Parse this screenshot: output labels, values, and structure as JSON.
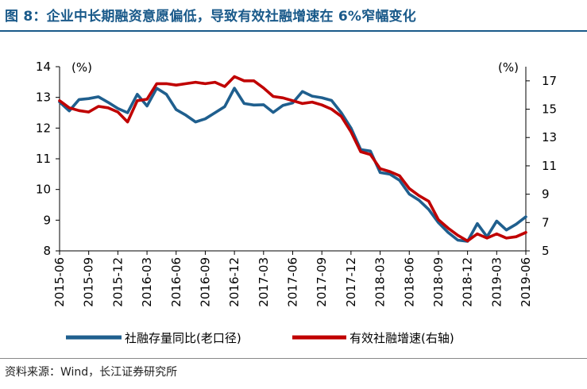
{
  "figure": {
    "title": "图 8：企业中长期融资意愿偏低，导致有效社融增速在 6%窄幅变化",
    "source": "资料来源：Wind，长江证券研究所"
  },
  "chart_data": {
    "type": "line",
    "title": "",
    "left_axis": {
      "unit_label": "(%)",
      "ylim": [
        8,
        14
      ],
      "ticks": [
        "8",
        "9",
        "10",
        "11",
        "12",
        "13",
        "14"
      ]
    },
    "right_axis": {
      "unit_label": "(%)",
      "ylim": [
        5,
        18
      ],
      "ticks": [
        "5",
        "7",
        "9",
        "11",
        "13",
        "15",
        "17"
      ]
    },
    "x_ticks": [
      "2015-06",
      "2015-09",
      "2015-12",
      "2016-03",
      "2016-06",
      "2016-09",
      "2016-12",
      "2017-03",
      "2017-06",
      "2017-09",
      "2017-12",
      "2018-03",
      "2018-06",
      "2018-09",
      "2018-12",
      "2019-03",
      "2019-06"
    ],
    "grid": false,
    "legend_position": "bottom",
    "series": [
      {
        "name": "社融存量同比(老口径)",
        "axis": "left",
        "color": "#1f5f8e",
        "values": [
          12.85,
          12.56,
          12.93,
          12.96,
          13.02,
          12.84,
          12.64,
          12.5,
          13.1,
          12.72,
          13.3,
          13.1,
          12.6,
          12.42,
          12.2,
          12.3,
          12.5,
          12.7,
          13.3,
          12.8,
          12.75,
          12.76,
          12.51,
          12.74,
          12.82,
          13.19,
          13.04,
          12.99,
          12.9,
          12.5,
          12.0,
          11.3,
          11.25,
          10.55,
          10.5,
          10.3,
          9.85,
          9.65,
          9.35,
          8.92,
          8.6,
          8.35,
          8.31,
          8.89,
          8.46,
          8.97,
          8.68,
          8.87,
          9.11
        ]
      },
      {
        "name": "有效社融增速(右轴)",
        "axis": "right",
        "color": "#c00000",
        "values": [
          15.6,
          15.1,
          14.9,
          14.8,
          15.2,
          15.1,
          14.8,
          14.1,
          15.6,
          15.7,
          16.8,
          16.8,
          16.7,
          16.8,
          16.9,
          16.8,
          16.9,
          16.6,
          17.3,
          17.0,
          17.0,
          16.5,
          15.9,
          15.8,
          15.6,
          15.4,
          15.5,
          15.3,
          15.0,
          14.5,
          13.4,
          12.0,
          11.8,
          10.8,
          10.6,
          10.3,
          9.4,
          8.9,
          8.5,
          7.2,
          6.6,
          6.1,
          5.7,
          6.2,
          5.9,
          6.2,
          5.9,
          6.0,
          6.3
        ]
      }
    ]
  }
}
